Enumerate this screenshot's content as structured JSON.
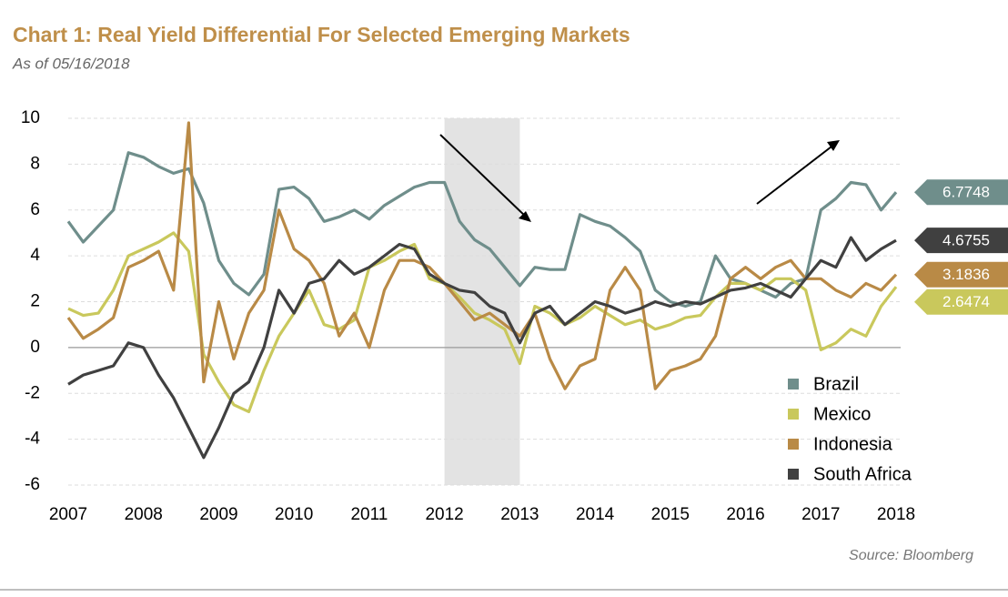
{
  "chart_data": {
    "type": "line",
    "title": "Chart 1: Real Yield Differential For Selected Emerging Markets",
    "subtitle": "As of 05/16/2018",
    "source": "Source: Bloomberg",
    "x": [
      2007.0,
      2007.2,
      2007.4,
      2007.6,
      2007.8,
      2008.0,
      2008.2,
      2008.4,
      2008.6,
      2008.8,
      2009.0,
      2009.2,
      2009.4,
      2009.6,
      2009.8,
      2010.0,
      2010.2,
      2010.4,
      2010.6,
      2010.8,
      2011.0,
      2011.2,
      2011.4,
      2011.6,
      2011.8,
      2012.0,
      2012.2,
      2012.4,
      2012.6,
      2012.8,
      2013.0,
      2013.2,
      2013.4,
      2013.6,
      2013.8,
      2014.0,
      2014.2,
      2014.4,
      2014.6,
      2014.8,
      2015.0,
      2015.2,
      2015.4,
      2015.6,
      2015.8,
      2016.0,
      2016.2,
      2016.4,
      2016.6,
      2016.8,
      2017.0,
      2017.2,
      2017.4,
      2017.6,
      2017.8,
      2018.0
    ],
    "series": [
      {
        "name": "Brazil",
        "color": "#6f8e8b",
        "values": [
          5.5,
          4.6,
          5.3,
          6.0,
          8.5,
          8.3,
          7.9,
          7.6,
          7.8,
          6.3,
          3.8,
          2.8,
          2.3,
          3.2,
          6.9,
          7.0,
          6.5,
          5.5,
          5.7,
          6.0,
          5.6,
          6.2,
          6.6,
          7.0,
          7.2,
          7.2,
          5.5,
          4.7,
          4.3,
          3.5,
          2.7,
          3.5,
          3.4,
          3.4,
          5.8,
          5.5,
          5.3,
          4.8,
          4.2,
          2.5,
          2.0,
          1.8,
          2.0,
          4.0,
          3.0,
          2.8,
          2.5,
          2.2,
          2.8,
          3.0,
          6.0,
          6.5,
          7.2,
          7.1,
          6.0,
          6.7748
        ]
      },
      {
        "name": "Mexico",
        "color": "#c9c85c",
        "values": [
          1.7,
          1.4,
          1.5,
          2.5,
          4.0,
          4.3,
          4.6,
          5.0,
          4.2,
          -0.3,
          -1.5,
          -2.5,
          -2.8,
          -1.0,
          0.5,
          1.5,
          2.5,
          1.0,
          0.8,
          1.2,
          3.5,
          3.8,
          4.2,
          4.5,
          3.0,
          2.8,
          2.2,
          1.5,
          1.2,
          0.8,
          -0.7,
          1.8,
          1.5,
          1.0,
          1.3,
          1.8,
          1.4,
          1.0,
          1.2,
          0.8,
          1.0,
          1.3,
          1.4,
          2.2,
          2.8,
          2.8,
          2.5,
          3.0,
          3.0,
          2.5,
          -0.1,
          0.2,
          0.8,
          0.5,
          1.8,
          2.6474
        ]
      },
      {
        "name": "Indonesia",
        "color": "#b98a46",
        "values": [
          1.3,
          0.4,
          0.8,
          1.3,
          3.5,
          3.8,
          4.2,
          2.5,
          9.8,
          -1.5,
          2.0,
          -0.5,
          1.5,
          2.5,
          6.0,
          4.3,
          3.8,
          2.8,
          0.5,
          1.5,
          0.0,
          2.5,
          3.8,
          3.8,
          3.5,
          2.8,
          2.0,
          1.2,
          1.5,
          1.0,
          0.5,
          1.5,
          -0.5,
          -1.8,
          -0.8,
          -0.5,
          2.5,
          3.5,
          2.5,
          -1.8,
          -1.0,
          -0.8,
          -0.5,
          0.5,
          3.0,
          3.5,
          3.0,
          3.5,
          3.8,
          3.0,
          3.0,
          2.5,
          2.2,
          2.8,
          2.5,
          3.1836
        ]
      },
      {
        "name": "South Africa",
        "color": "#404040",
        "values": [
          -1.6,
          -1.2,
          -1.0,
          -0.8,
          0.2,
          0.0,
          -1.2,
          -2.2,
          -3.5,
          -4.8,
          -3.5,
          -2.0,
          -1.5,
          0.0,
          2.5,
          1.5,
          2.8,
          3.0,
          3.8,
          3.2,
          3.5,
          4.0,
          4.5,
          4.3,
          3.2,
          2.8,
          2.5,
          2.4,
          1.8,
          1.5,
          0.2,
          1.5,
          1.8,
          1.0,
          1.5,
          2.0,
          1.8,
          1.5,
          1.7,
          2.0,
          1.8,
          2.0,
          1.9,
          2.2,
          2.5,
          2.6,
          2.8,
          2.5,
          2.2,
          3.0,
          3.8,
          3.5,
          4.8,
          3.8,
          4.3,
          4.6755
        ]
      }
    ],
    "shaded": [
      2012,
      2013
    ],
    "xlim": [
      2007,
      2018
    ],
    "xticks": [
      2007,
      2008,
      2009,
      2010,
      2011,
      2012,
      2013,
      2014,
      2015,
      2016,
      2017,
      2018
    ],
    "ylim": [
      -6,
      10
    ],
    "yticks": [
      -6,
      -4,
      -2,
      0,
      2,
      4,
      6,
      8,
      10
    ],
    "grid": true,
    "legend": "lower right"
  }
}
